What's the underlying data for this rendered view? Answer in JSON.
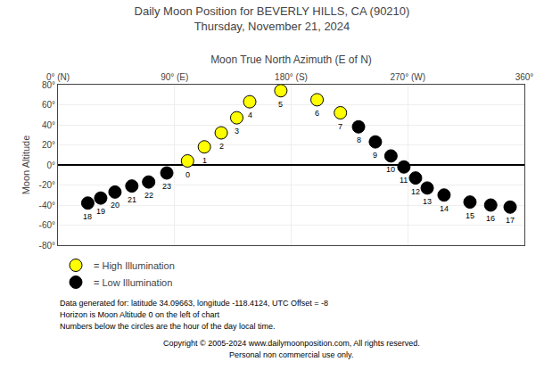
{
  "chart_data": {
    "type": "scatter",
    "title": "Daily Moon Position for BEVERLY HILLS, CA (90210)",
    "subtitle": "Thursday, November 21, 2024",
    "xlabel": "Moon True North Azimuth (E of N)",
    "ylabel": "Moon Altitude",
    "xlim": [
      0,
      360
    ],
    "xticks": [
      {
        "value": 0,
        "label": "0° (N)"
      },
      {
        "value": 90,
        "label": "90° (E)"
      },
      {
        "value": 180,
        "label": "180° (S)"
      },
      {
        "value": 270,
        "label": "270° (W)"
      },
      {
        "value": 360,
        "label": "360°"
      }
    ],
    "ylim": [
      -80,
      80
    ],
    "yticks": [
      {
        "value": -80,
        "label": "-80°"
      },
      {
        "value": -60,
        "label": "-60°"
      },
      {
        "value": -40,
        "label": "-40°"
      },
      {
        "value": -20,
        "label": "-20°"
      },
      {
        "value": 0,
        "label": "0°"
      },
      {
        "value": 20,
        "label": "20°"
      },
      {
        "value": 40,
        "label": "40°"
      },
      {
        "value": 60,
        "label": "60°"
      },
      {
        "value": 80,
        "label": "80°"
      }
    ],
    "grid": true,
    "legend": "bottom left",
    "series": [
      {
        "name": "= High Illumination",
        "color": "#FFFF00",
        "marker": "circle",
        "x": [
          100,
          113,
          126,
          138,
          148,
          172,
          200,
          218
        ],
        "values": [
          4,
          18,
          32,
          47,
          63,
          74,
          65,
          52
        ]
      },
      {
        "name": "= Low Illumination",
        "color": "#000000",
        "marker": "circle",
        "x": [
          23,
          33,
          44,
          57,
          70,
          84,
          232,
          245,
          257,
          267,
          276,
          285,
          298,
          318,
          334,
          349
        ],
        "values": [
          -38,
          -33,
          -27,
          -21,
          -17,
          -8,
          38,
          23,
          9,
          -2,
          -13,
          -23,
          -30,
          -37,
          -40,
          -42
        ]
      }
    ],
    "annotations": [
      {
        "x": 23,
        "y": -38,
        "text": "18"
      },
      {
        "x": 33,
        "y": -33,
        "text": "19"
      },
      {
        "x": 44,
        "y": -27,
        "text": "20"
      },
      {
        "x": 57,
        "y": -21,
        "text": "21"
      },
      {
        "x": 70,
        "y": -17,
        "text": "22"
      },
      {
        "x": 84,
        "y": -8,
        "text": "23"
      },
      {
        "x": 100,
        "y": 4,
        "text": "0"
      },
      {
        "x": 113,
        "y": 18,
        "text": "1"
      },
      {
        "x": 126,
        "y": 32,
        "text": "2"
      },
      {
        "x": 138,
        "y": 47,
        "text": "3"
      },
      {
        "x": 148,
        "y": 63,
        "text": "4"
      },
      {
        "x": 172,
        "y": 74,
        "text": "5"
      },
      {
        "x": 200,
        "y": 65,
        "text": "6"
      },
      {
        "x": 218,
        "y": 52,
        "text": "7"
      },
      {
        "x": 232,
        "y": 38,
        "text": "8"
      },
      {
        "x": 245,
        "y": 23,
        "text": "9"
      },
      {
        "x": 257,
        "y": 9,
        "text": "10"
      },
      {
        "x": 267,
        "y": -2,
        "text": "11"
      },
      {
        "x": 276,
        "y": -13,
        "text": "12"
      },
      {
        "x": 285,
        "y": -23,
        "text": "13"
      },
      {
        "x": 298,
        "y": -30,
        "text": "14"
      },
      {
        "x": 318,
        "y": -37,
        "text": "15"
      },
      {
        "x": 334,
        "y": -40,
        "text": "16"
      },
      {
        "x": 349,
        "y": -42,
        "text": "17"
      }
    ],
    "notes": [
      "Data generated for: latitude 34.09663, longitude -118.4124, UTC Offset = -8",
      "Horizon is Moon Altitude 0 on the left of chart",
      "Numbers below the circles are the hour of the day local time.",
      "Copyright © 2005-2024 www.dailymoonposition.com, All rights reserved.",
      "Personal non commercial use only."
    ]
  }
}
